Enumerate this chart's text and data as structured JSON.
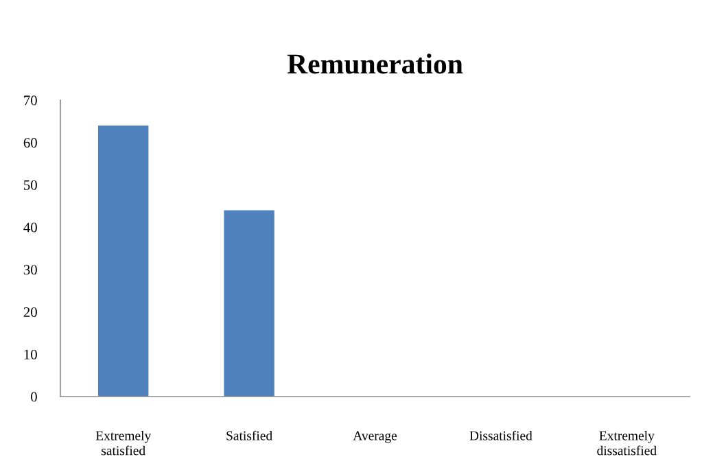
{
  "chart_data": {
    "type": "bar",
    "title": "Remuneration",
    "categories": [
      "Extremely\nsatisfied",
      "Satisfied",
      "Average",
      "Dissatisfied",
      "Extremely\ndissatisfied"
    ],
    "values": [
      64,
      44,
      0,
      0,
      0
    ],
    "color": "#4f81bd",
    "ylim": [
      0,
      70
    ],
    "yticks": [
      0,
      10,
      20,
      30,
      40,
      50,
      60,
      70
    ],
    "grid": false,
    "legend": false
  }
}
